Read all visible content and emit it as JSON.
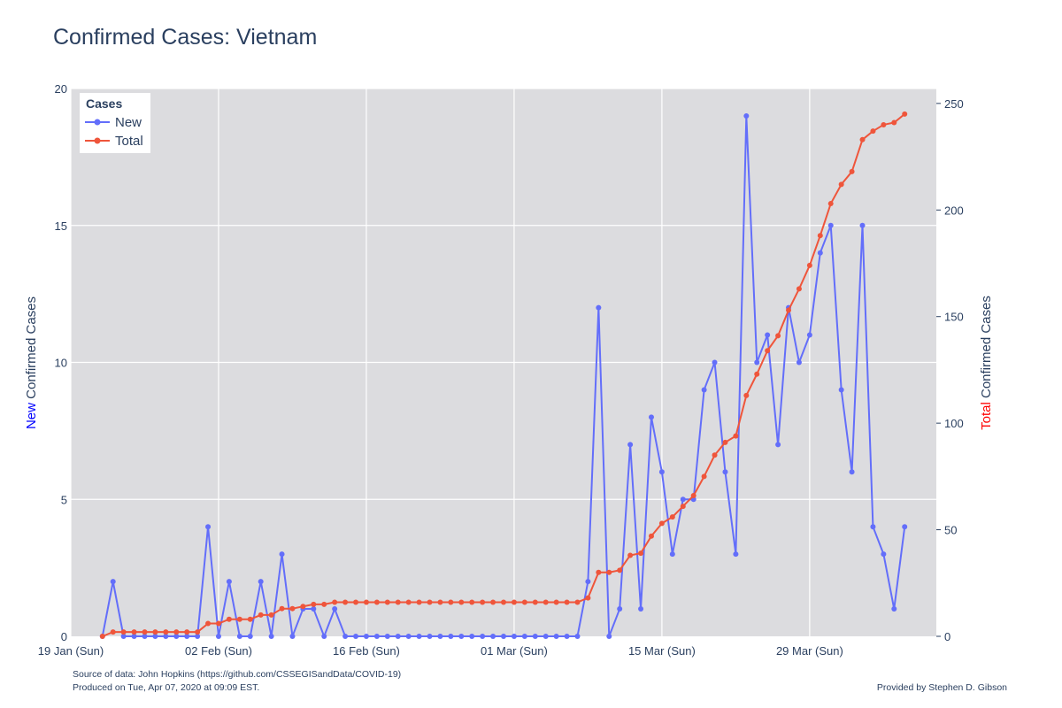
{
  "chart_data": {
    "type": "line",
    "title": "Confirmed Cases: Vietnam",
    "x_start": "2020-01-22",
    "x_ticks": [
      "19 Jan (Sun)",
      "02 Feb (Sun)",
      "16 Feb (Sun)",
      "01 Mar (Sun)",
      "15 Mar (Sun)",
      "29 Mar (Sun)"
    ],
    "xlim": [
      "2020-01-19",
      "2020-04-10"
    ],
    "y_left": {
      "title_colored": "New",
      "title_rest": " Confirmed Cases",
      "title_color": "#0000ff",
      "ylim": [
        0,
        20
      ],
      "ticks": [
        0,
        5,
        10,
        15,
        20
      ]
    },
    "y_right": {
      "title_colored": "Total",
      "title_rest": " Confirmed Cases",
      "title_color": "#ff0000",
      "ylim": [
        0,
        257
      ],
      "ticks": [
        0,
        50,
        100,
        150,
        200,
        250
      ]
    },
    "legend": {
      "title": "Cases",
      "position": "top-left"
    },
    "series": [
      {
        "name": "New",
        "axis": "left",
        "color": "#636efa",
        "values": [
          0,
          2,
          0,
          0,
          0,
          0,
          0,
          0,
          0,
          0,
          4,
          0,
          2,
          0,
          0,
          2,
          0,
          3,
          0,
          1,
          1,
          0,
          1,
          0,
          0,
          0,
          0,
          0,
          0,
          0,
          0,
          0,
          0,
          0,
          0,
          0,
          0,
          0,
          0,
          0,
          0,
          0,
          0,
          0,
          0,
          0,
          2,
          12,
          0,
          1,
          7,
          1,
          8,
          6,
          3,
          5,
          5,
          9,
          10,
          6,
          3,
          19,
          10,
          11,
          7,
          12,
          10,
          11,
          14,
          15,
          9,
          6,
          15,
          4,
          3,
          1,
          4
        ]
      },
      {
        "name": "Total",
        "axis": "right",
        "color": "#ef553b",
        "values": [
          0,
          2,
          2,
          2,
          2,
          2,
          2,
          2,
          2,
          2,
          6,
          6,
          8,
          8,
          8,
          10,
          10,
          13,
          13,
          14,
          15,
          15,
          16,
          16,
          16,
          16,
          16,
          16,
          16,
          16,
          16,
          16,
          16,
          16,
          16,
          16,
          16,
          16,
          16,
          16,
          16,
          16,
          16,
          16,
          16,
          16,
          18,
          30,
          30,
          31,
          38,
          39,
          47,
          53,
          56,
          61,
          66,
          75,
          85,
          91,
          94,
          113,
          123,
          134,
          141,
          153,
          163,
          174,
          188,
          203,
          212,
          218,
          233,
          237,
          240,
          241,
          245
        ]
      }
    ],
    "grid": true
  },
  "footer": {
    "source_line": "Source of data: John Hopkins (https://github.com/CSSEGISandData/COVID-19)",
    "produced_line": "Produced on Tue, Apr 07, 2020 at 09:09 EST.",
    "credit": "Provided by Stephen D. Gibson"
  }
}
